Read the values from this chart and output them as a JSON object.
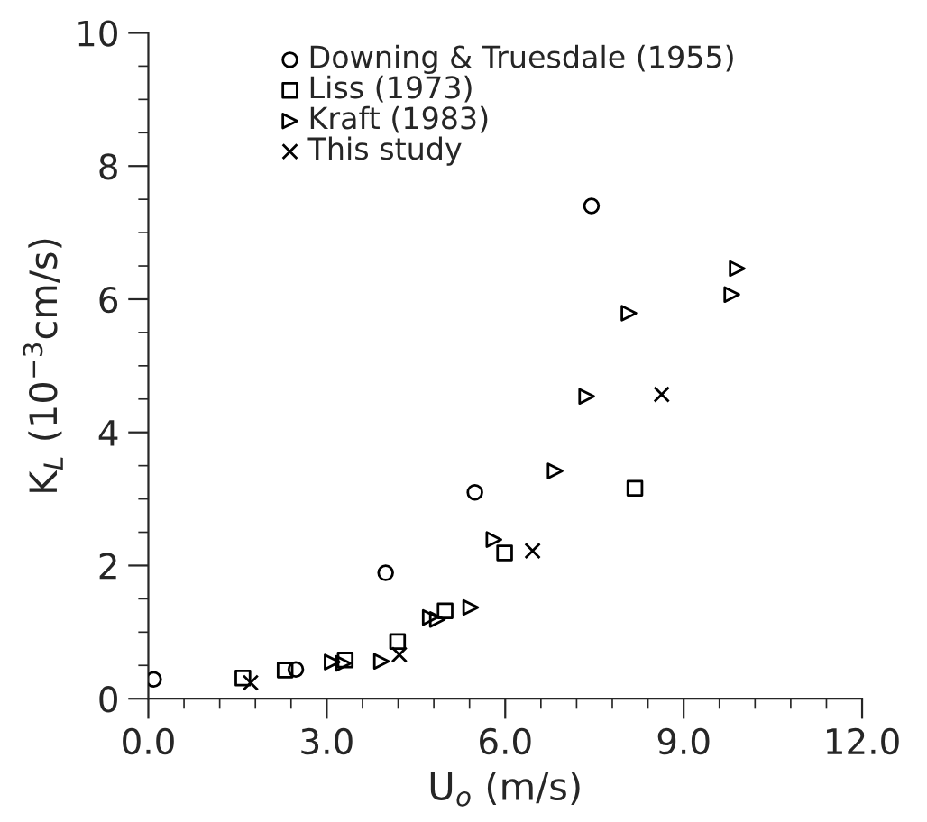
{
  "chart_data": {
    "type": "scatter",
    "xlabel": "U$_{o}$ (m/s)",
    "ylabel": "K$_{L}$ (10$^{−3}$cm/s)",
    "xlim": [
      0,
      12
    ],
    "ylim": [
      0,
      10
    ],
    "xticks": [
      {
        "value": 0,
        "label": "0.0"
      },
      {
        "value": 3,
        "label": "3.0"
      },
      {
        "value": 6,
        "label": "6.0"
      },
      {
        "value": 9,
        "label": "9.0"
      },
      {
        "value": 12,
        "label": "12.0"
      }
    ],
    "yticks": [
      0,
      2,
      4,
      6,
      8,
      10
    ],
    "grid": false,
    "legend": "top",
    "series": [
      {
        "name": "Downing & Truesdale (1955)",
        "color": "#000000",
        "marker": "circle",
        "x": [
          0.09,
          2.48,
          3.99,
          5.49,
          7.45
        ],
        "values": [
          0.29,
          0.44,
          1.89,
          3.1,
          7.4
        ]
      },
      {
        "name": "Liss (1973)",
        "color": "#000000",
        "marker": "square",
        "x": [
          1.59,
          2.3,
          3.31,
          4.19,
          4.99,
          5.99,
          8.18
        ],
        "values": [
          0.31,
          0.43,
          0.58,
          0.86,
          1.32,
          2.19,
          3.16
        ]
      },
      {
        "name": "Kraft (1983)",
        "color": "#000000",
        "marker": "triangle",
        "x": [
          3.09,
          3.28,
          3.92,
          4.74,
          4.86,
          5.42,
          5.81,
          6.84,
          7.37,
          8.08,
          9.81,
          9.9
        ],
        "values": [
          0.55,
          0.53,
          0.56,
          1.22,
          1.19,
          1.37,
          2.39,
          3.42,
          4.54,
          5.79,
          6.07,
          6.46
        ]
      },
      {
        "name": "This study",
        "color": "#000000",
        "marker": "cross",
        "x": [
          1.72,
          4.22,
          6.46,
          8.63
        ],
        "values": [
          0.24,
          0.66,
          2.22,
          4.57
        ]
      }
    ]
  }
}
